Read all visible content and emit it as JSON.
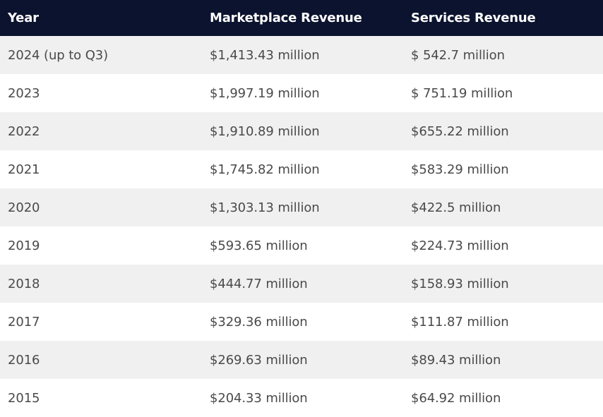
{
  "table": {
    "headers": [
      "Year",
      "Marketplace Revenue",
      "Services Revenue"
    ],
    "rows": [
      [
        "2024 (up to Q3)",
        "$1,413.43 million",
        "$ 542.7 million"
      ],
      [
        "2023",
        "$1,997.19 million",
        "$ 751.19 million"
      ],
      [
        "2022",
        "$1,910.89 million",
        "$655.22 million"
      ],
      [
        "2021",
        "$1,745.82 million",
        "$583.29 million"
      ],
      [
        "2020",
        "$1,303.13 million",
        "$422.5 million"
      ],
      [
        "2019",
        "$593.65 million",
        "$224.73 million"
      ],
      [
        "2018",
        "$444.77 million",
        "$158.93 million"
      ],
      [
        "2017",
        "$329.36 million",
        "$111.87 million"
      ],
      [
        "2016",
        "$269.63 million",
        "$89.43 million"
      ],
      [
        "2015",
        "$204.33 million",
        "$64.92 million"
      ]
    ]
  },
  "colors": {
    "header_bg": "#0b132e",
    "header_text": "#ffffff",
    "row_alt_bg": "#f0f0f0",
    "row_bg": "#ffffff",
    "cell_text": "#4a4a4a"
  }
}
